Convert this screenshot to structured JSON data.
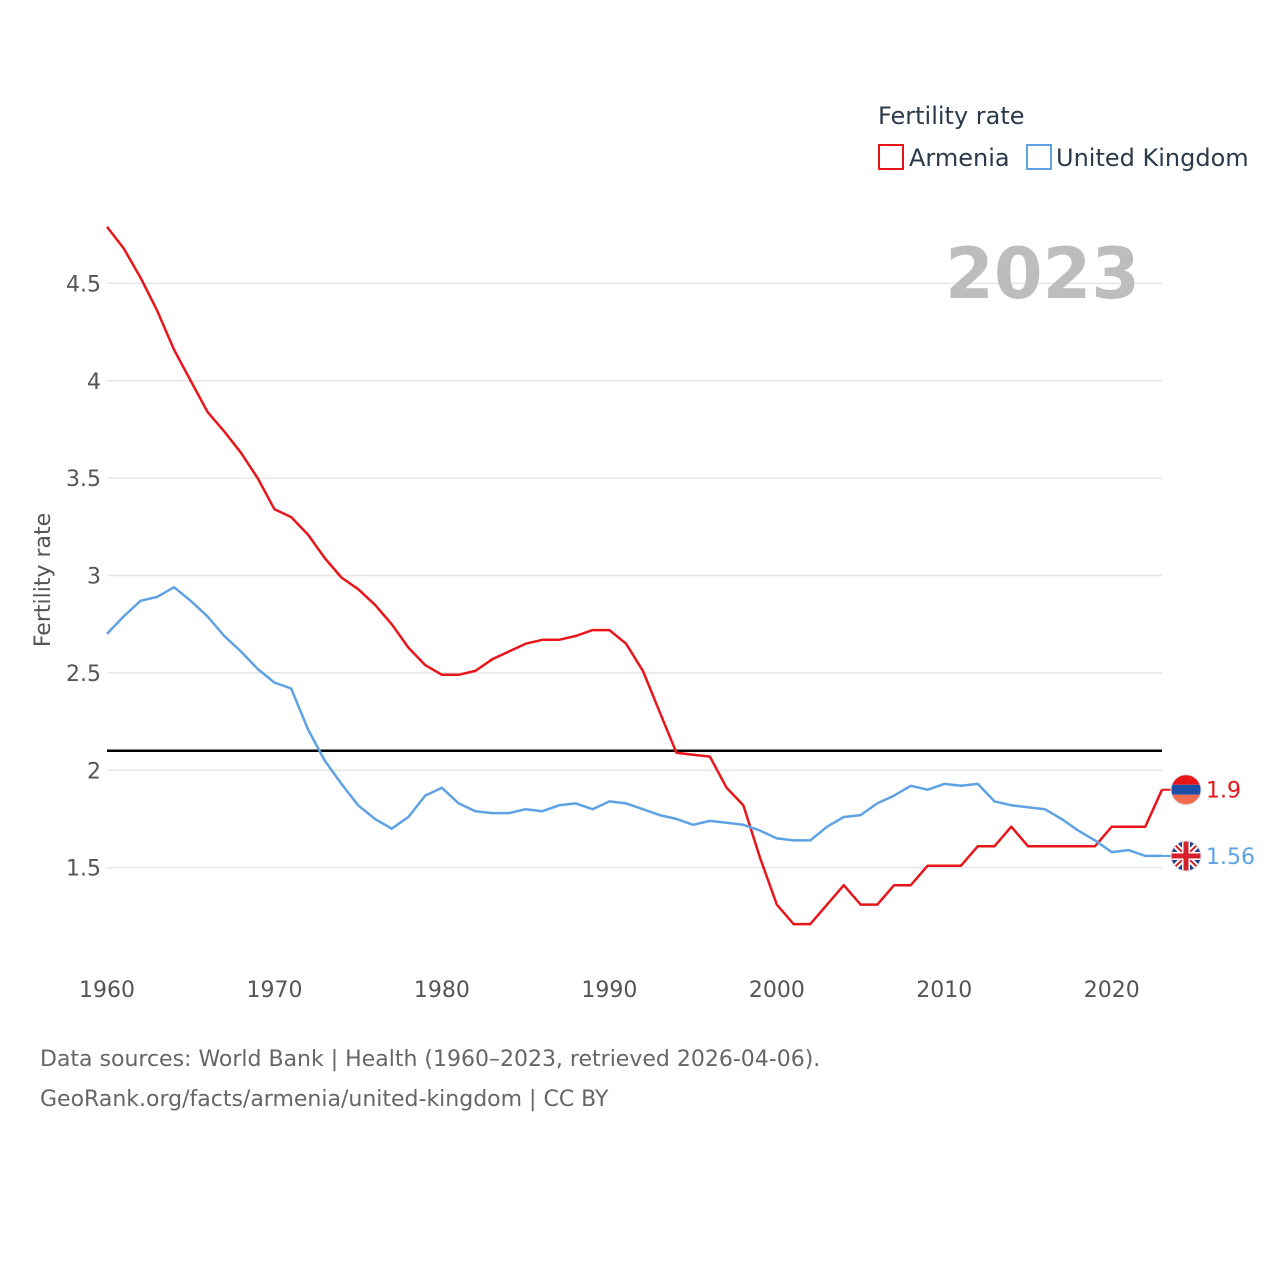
{
  "chart_data": {
    "type": "line",
    "title": "",
    "xlabel": "",
    "ylabel": "Fertility rate",
    "xlim": [
      1960,
      2023
    ],
    "ylim": [
      1.0,
      4.8
    ],
    "x_ticks": [
      1960,
      1970,
      1980,
      1990,
      2000,
      2010,
      2020
    ],
    "y_ticks": [
      1.5,
      2,
      2.5,
      3,
      3.5,
      4,
      4.5
    ],
    "y_tick_labels": [
      "1.5",
      "2",
      "2.5",
      "3",
      "3.5",
      "4",
      "4.5"
    ],
    "legend_title": "Fertility rate",
    "legend_position": "top-right",
    "year_label": "2023",
    "reference_line": {
      "y": 2.1,
      "color": "#000000"
    },
    "x": [
      1960,
      1961,
      1962,
      1963,
      1964,
      1965,
      1966,
      1967,
      1968,
      1969,
      1970,
      1971,
      1972,
      1973,
      1974,
      1975,
      1976,
      1977,
      1978,
      1979,
      1980,
      1981,
      1982,
      1983,
      1984,
      1985,
      1986,
      1987,
      1988,
      1989,
      1990,
      1991,
      1992,
      1993,
      1994,
      1995,
      1996,
      1997,
      1998,
      1999,
      2000,
      2001,
      2002,
      2003,
      2004,
      2005,
      2006,
      2007,
      2008,
      2009,
      2010,
      2011,
      2012,
      2013,
      2014,
      2015,
      2016,
      2017,
      2018,
      2019,
      2020,
      2021,
      2022,
      2023
    ],
    "series": [
      {
        "name": "Armenia",
        "color": "#e8161b",
        "end_label": "1.9",
        "flag_icon": "armenia-flag-icon",
        "values": [
          4.79,
          4.68,
          4.53,
          4.36,
          4.16,
          4.0,
          3.84,
          3.74,
          3.63,
          3.5,
          3.34,
          3.3,
          3.21,
          3.09,
          2.99,
          2.93,
          2.85,
          2.75,
          2.63,
          2.54,
          2.49,
          2.49,
          2.51,
          2.57,
          2.61,
          2.65,
          2.67,
          2.67,
          2.69,
          2.72,
          2.72,
          2.65,
          2.51,
          2.3,
          2.09,
          2.08,
          2.07,
          1.91,
          1.82,
          1.55,
          1.31,
          1.21,
          1.21,
          1.31,
          1.41,
          1.31,
          1.31,
          1.41,
          1.41,
          1.51,
          1.51,
          1.51,
          1.61,
          1.61,
          1.71,
          1.61,
          1.61,
          1.61,
          1.61,
          1.61,
          1.71,
          1.71,
          1.71,
          1.9
        ]
      },
      {
        "name": "United Kingdom",
        "color": "#5fa2e4",
        "end_label": "1.56",
        "flag_icon": "uk-flag-icon",
        "values": [
          2.7,
          2.79,
          2.87,
          2.89,
          2.94,
          2.87,
          2.79,
          2.69,
          2.61,
          2.52,
          2.45,
          2.42,
          2.21,
          2.05,
          1.93,
          1.82,
          1.75,
          1.7,
          1.76,
          1.87,
          1.91,
          1.83,
          1.79,
          1.78,
          1.78,
          1.8,
          1.79,
          1.82,
          1.83,
          1.8,
          1.84,
          1.83,
          1.8,
          1.77,
          1.75,
          1.72,
          1.74,
          1.73,
          1.72,
          1.69,
          1.65,
          1.64,
          1.64,
          1.71,
          1.76,
          1.77,
          1.83,
          1.87,
          1.92,
          1.9,
          1.93,
          1.92,
          1.93,
          1.84,
          1.82,
          1.81,
          1.8,
          1.75,
          1.69,
          1.64,
          1.58,
          1.59,
          1.56,
          1.56
        ]
      }
    ]
  },
  "footer": {
    "line1": "Data sources: World Bank | Health (1960–2023, retrieved 2026-04-06).",
    "line2": "GeoRank.org/facts/armenia/united-kingdom | CC BY"
  }
}
